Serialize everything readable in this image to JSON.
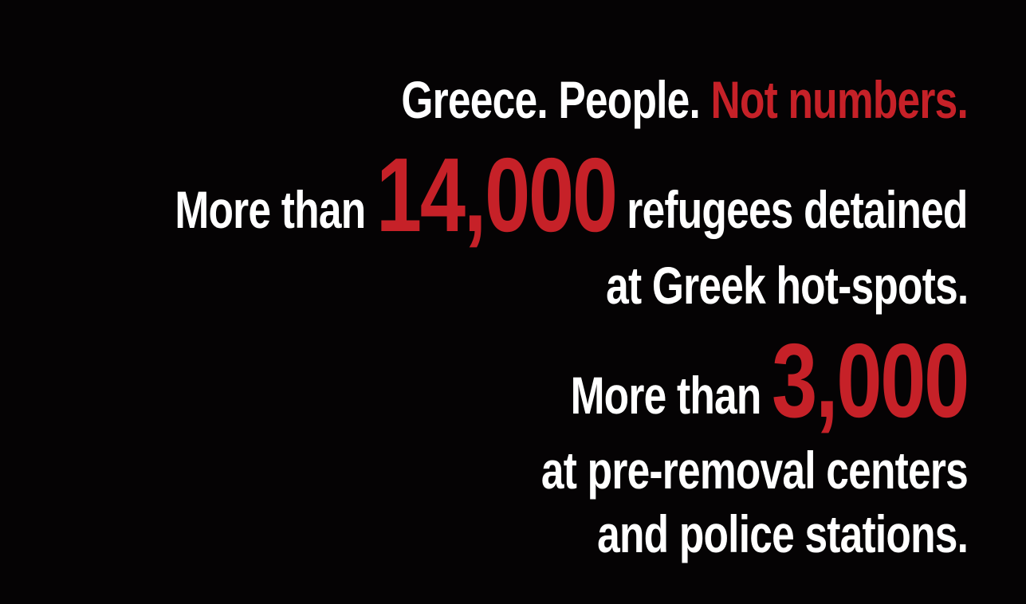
{
  "headline": {
    "part1": "Greece. People.",
    "part2": "Not numbers."
  },
  "stat1": {
    "prefix": "More than",
    "number": "14,000",
    "suffix": "refugees detained",
    "line2": "at Greek hot-spots."
  },
  "stat2": {
    "prefix": "More than",
    "number": "3,000",
    "line2": "at pre-removal centers",
    "line3": "and police stations."
  },
  "colors": {
    "background": "#050304",
    "text": "#ffffff",
    "accent": "#c62128"
  }
}
